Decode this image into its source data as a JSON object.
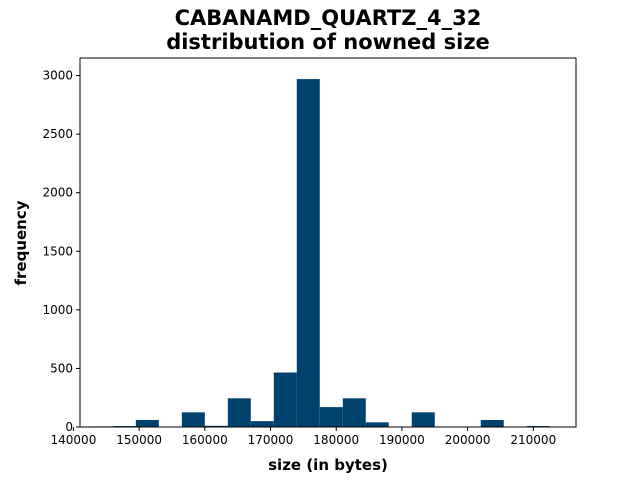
{
  "chart_data": {
    "type": "bar",
    "title_line1": "CABANAMD_QUARTZ_4_32",
    "title_line2": "distribution of nowned size",
    "xlabel": "size (in bytes)",
    "ylabel": "frequency",
    "bar_color": "#00426e",
    "bin_edges": [
      142500,
      146000,
      149500,
      153000,
      156500,
      160000,
      163500,
      167000,
      170500,
      174000,
      177500,
      181000,
      184500,
      188000,
      191500,
      195000,
      198500,
      202000,
      205500,
      209000,
      212500
    ],
    "values": [
      5,
      8,
      60,
      0,
      125,
      10,
      245,
      50,
      465,
      2970,
      170,
      245,
      40,
      0,
      125,
      0,
      0,
      60,
      0,
      8
    ],
    "xlim": [
      141000,
      216500
    ],
    "ylim": [
      0,
      3150
    ],
    "x_ticks": [
      140000,
      150000,
      160000,
      170000,
      180000,
      190000,
      200000,
      210000
    ],
    "x_tick_labels": [
      "140000",
      "150000",
      "160000",
      "170000",
      "180000",
      "190000",
      "200000",
      "210000"
    ],
    "y_ticks": [
      0,
      500,
      1000,
      1500,
      2000,
      2500,
      3000
    ],
    "y_tick_labels": [
      "0",
      "500",
      "1000",
      "1500",
      "2000",
      "2500",
      "3000"
    ],
    "grid": false,
    "legend": false
  }
}
